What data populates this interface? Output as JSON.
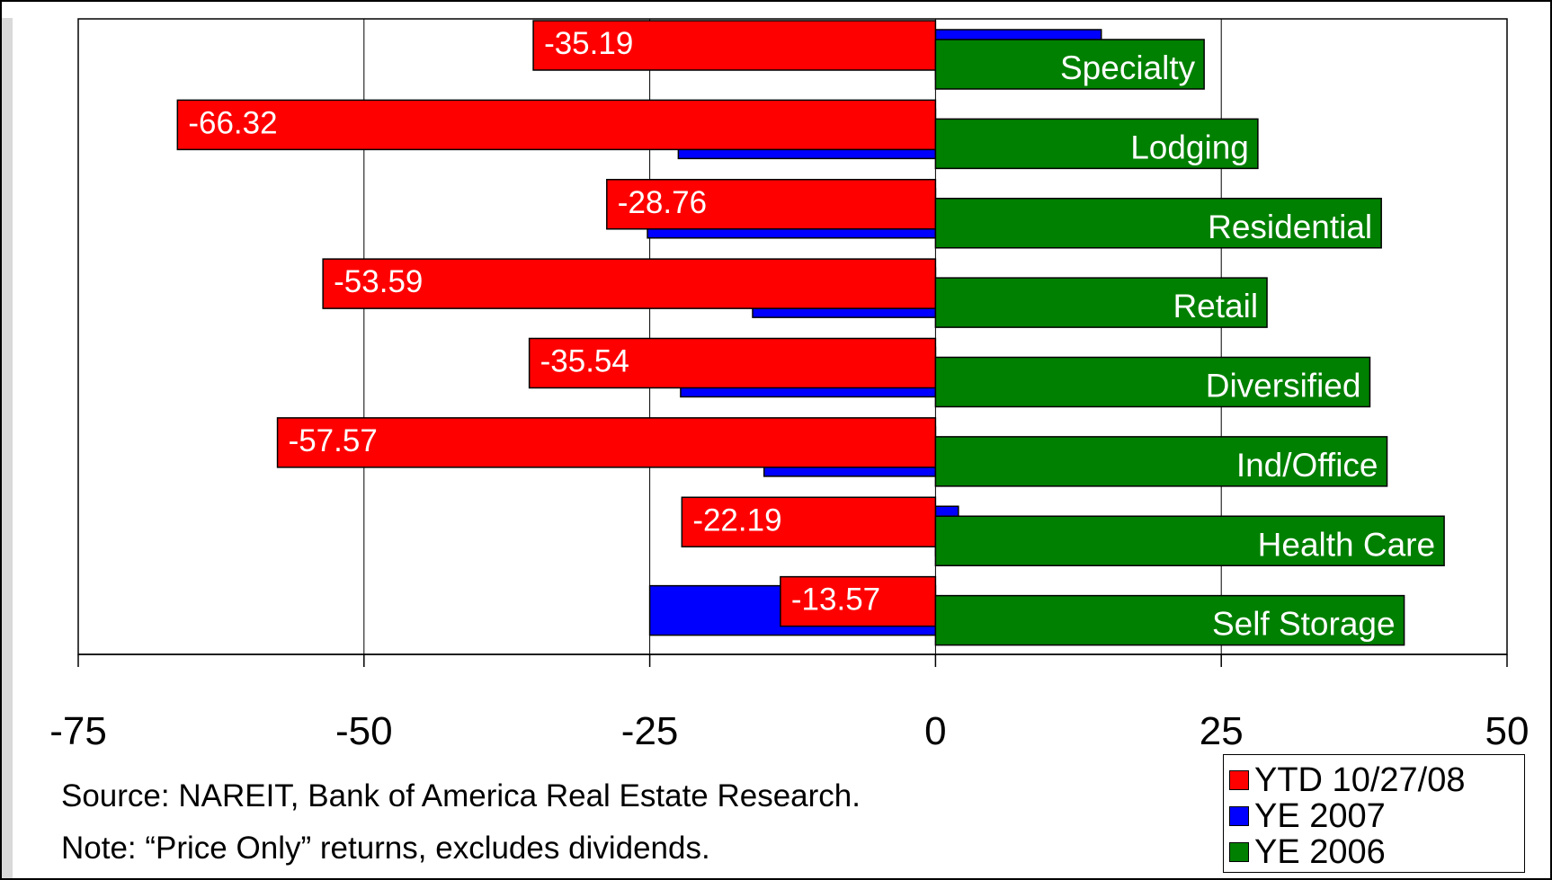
{
  "chart_data": {
    "type": "bar",
    "orientation": "horizontal",
    "categories": [
      "Specialty",
      "Lodging",
      "Residential",
      "Retail",
      "Diversified",
      "Ind/Office",
      "Health Care",
      "Self Storage"
    ],
    "series": [
      {
        "name": "YTD 10/27/08",
        "color": "#ff0000",
        "values": [
          -35.19,
          -66.32,
          -28.76,
          -53.59,
          -35.54,
          -57.57,
          -22.19,
          -13.57
        ]
      },
      {
        "name": "YE 2007",
        "color": "#0000ff",
        "values": [
          14.5,
          -22.5,
          -25.2,
          -16.0,
          -22.3,
          -15.0,
          2.0,
          -25.0
        ]
      },
      {
        "name": "YE 2006",
        "color": "#008000",
        "values": [
          23.5,
          28.2,
          39.0,
          29.0,
          38.0,
          39.5,
          44.5,
          41.0
        ]
      }
    ],
    "data_labels_series": "YTD 10/27/08",
    "xlim": [
      -75,
      50
    ],
    "xticks": [
      "-75",
      "-50",
      "-25",
      "0",
      "25",
      "50"
    ],
    "grid": "vertical",
    "legend": "bottom-right"
  },
  "footnotes": {
    "source": "Source: NAREIT, Bank of America Real Estate Research.",
    "note": "Note: “Price Only” returns, excludes dividends."
  }
}
